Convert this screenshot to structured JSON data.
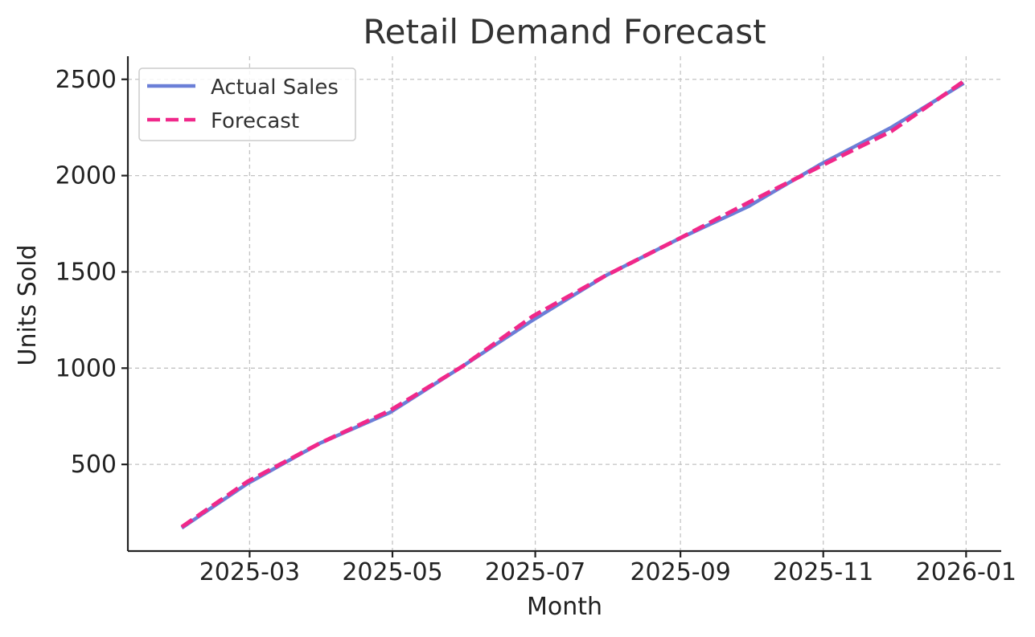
{
  "chart_data": {
    "type": "line",
    "title": "Retail Demand Forecast",
    "xlabel": "Month",
    "ylabel": "Units Sold",
    "x": [
      "2025-01-31",
      "2025-02-28",
      "2025-03-31",
      "2025-04-30",
      "2025-05-31",
      "2025-06-30",
      "2025-07-31",
      "2025-08-31",
      "2025-09-30",
      "2025-10-31",
      "2025-11-30",
      "2025-12-31"
    ],
    "x_ticks": [
      "2025-03",
      "2025-05",
      "2025-07",
      "2025-09",
      "2025-11",
      "2026-01"
    ],
    "y_ticks": [
      500,
      1000,
      1500,
      2000,
      2500
    ],
    "ylim": [
      50,
      2620
    ],
    "xlim": [
      "2025-01-08",
      "2026-01-16"
    ],
    "grid": true,
    "legend_position": "upper-left",
    "series": [
      {
        "name": "Actual Sales",
        "color": "#6b7fd7",
        "style": "solid",
        "values": [
          170,
          400,
          610,
          770,
          1010,
          1250,
          1480,
          1670,
          1840,
          2060,
          2250,
          2480
        ]
      },
      {
        "name": "Forecast",
        "color": "#f0288a",
        "style": "dashed",
        "values": [
          175,
          410,
          610,
          780,
          1010,
          1270,
          1480,
          1670,
          1860,
          2050,
          2230,
          2490
        ]
      }
    ]
  }
}
